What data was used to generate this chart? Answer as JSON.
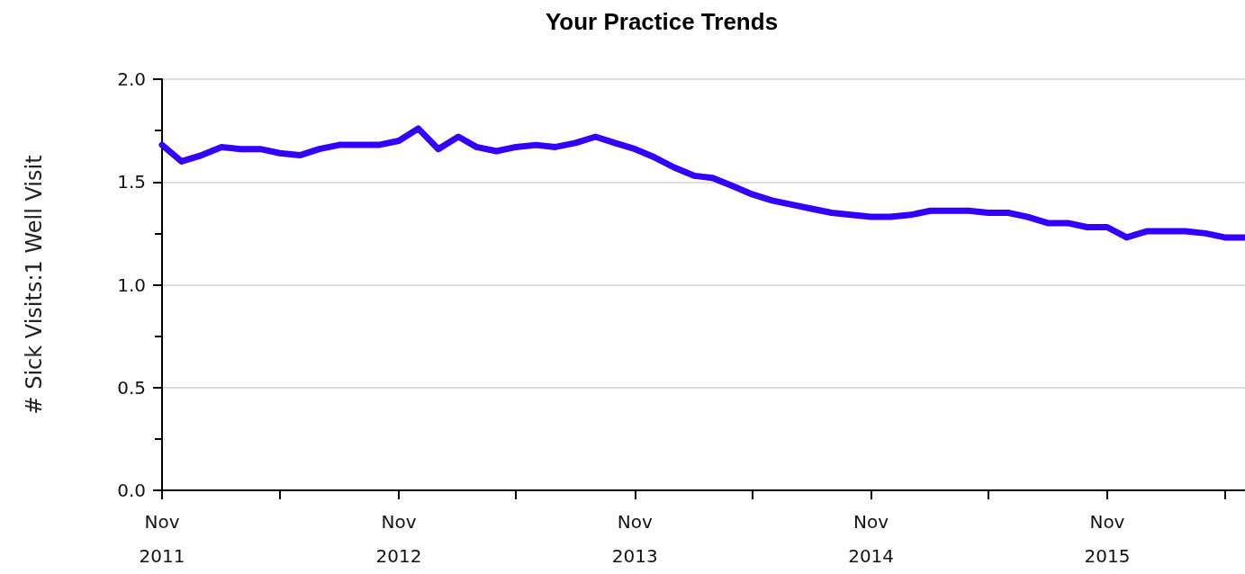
{
  "chart_data": {
    "type": "line",
    "title": "Your Practice Trends",
    "ylabel": "# Sick Visits:1 Well Visit",
    "x": [
      "2011-11",
      "2011-12",
      "2012-01",
      "2012-02",
      "2012-03",
      "2012-04",
      "2012-05",
      "2012-06",
      "2012-07",
      "2012-08",
      "2012-09",
      "2012-10",
      "2012-11",
      "2012-12",
      "2013-01",
      "2013-02",
      "2013-03",
      "2013-04",
      "2013-05",
      "2013-06",
      "2013-07",
      "2013-08",
      "2013-09",
      "2013-10",
      "2013-11",
      "2013-12",
      "2014-01",
      "2014-02",
      "2014-03",
      "2014-04",
      "2014-05",
      "2014-06",
      "2014-07",
      "2014-08",
      "2014-09",
      "2014-10",
      "2014-11",
      "2014-12",
      "2015-01",
      "2015-02",
      "2015-03",
      "2015-04",
      "2015-05",
      "2015-06",
      "2015-07",
      "2015-08",
      "2015-09",
      "2015-10",
      "2015-11",
      "2015-12",
      "2016-01",
      "2016-02",
      "2016-03",
      "2016-04",
      "2016-05",
      "2016-06"
    ],
    "series": [
      {
        "color": "#3300ff",
        "values": [
          1.68,
          1.6,
          1.63,
          1.67,
          1.66,
          1.66,
          1.64,
          1.63,
          1.66,
          1.68,
          1.68,
          1.68,
          1.7,
          1.76,
          1.66,
          1.72,
          1.67,
          1.65,
          1.67,
          1.68,
          1.67,
          1.69,
          1.72,
          1.69,
          1.66,
          1.62,
          1.57,
          1.53,
          1.52,
          1.48,
          1.44,
          1.41,
          1.39,
          1.37,
          1.35,
          1.34,
          1.33,
          1.33,
          1.34,
          1.36,
          1.36,
          1.36,
          1.35,
          1.35,
          1.33,
          1.3,
          1.3,
          1.28,
          1.28,
          1.23,
          1.26,
          1.26,
          1.26,
          1.25,
          1.23,
          1.23
        ]
      }
    ],
    "xlim": [
      "2011-11",
      "2016-06"
    ],
    "xticks": [
      {
        "value": "2011-11",
        "label": "Nov 2011"
      },
      {
        "value": "2012-05",
        "label": null
      },
      {
        "value": "2012-11",
        "label": "Nov 2012"
      },
      {
        "value": "2013-05",
        "label": null
      },
      {
        "value": "2013-11",
        "label": "Nov 2013"
      },
      {
        "value": "2014-05",
        "label": null
      },
      {
        "value": "2014-11",
        "label": "Nov 2014"
      },
      {
        "value": "2015-05",
        "label": null
      },
      {
        "value": "2015-11",
        "label": "Nov 2015"
      },
      {
        "value": "2016-05",
        "label": null
      }
    ],
    "ylim": [
      0,
      2
    ],
    "yticks": [
      {
        "value": 0,
        "label": "0.0"
      },
      {
        "value": 0.5,
        "label": "0.5"
      },
      {
        "value": 1,
        "label": "1.0"
      },
      {
        "value": 1.5,
        "label": "1.5"
      },
      {
        "value": 2,
        "label": "2.0"
      }
    ],
    "grid": "y",
    "marker": "none",
    "line_style": "solid"
  }
}
